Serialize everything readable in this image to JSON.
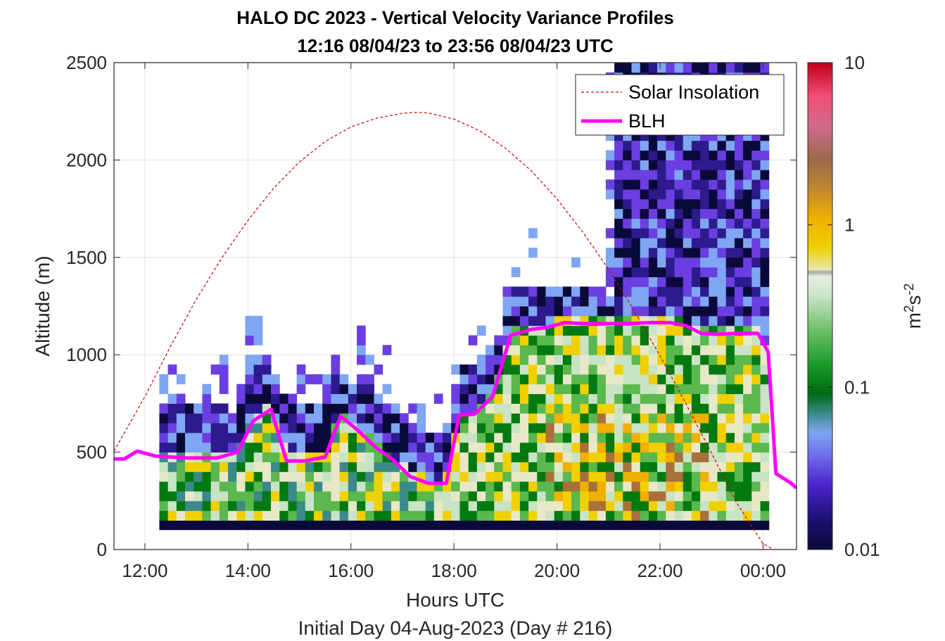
{
  "chart_data": {
    "type": "heatmap",
    "title": "HALO DC 2023 - Vertical Velocity Variance Profiles",
    "subtitle": "12:16 08/04/23 to 23:56 08/04/23  UTC",
    "xlabel": "Hours UTC",
    "ylabel": "Altitude (m)",
    "footer": "Initial Day 04-Aug-2023 (Day # 216)",
    "xlim": [
      11.4,
      24.65
    ],
    "ylim": [
      0,
      2500
    ],
    "grid": true,
    "xticks": [
      12,
      14,
      16,
      18,
      20,
      22,
      24
    ],
    "xtick_labels": [
      "12:00",
      "14:00",
      "16:00",
      "18:00",
      "20:00",
      "22:00",
      "00:00"
    ],
    "yticks": [
      0,
      500,
      1000,
      1500,
      2000,
      2500
    ],
    "ytick_labels": [
      "0",
      "500",
      "1000",
      "1500",
      "2000",
      "2500"
    ],
    "colorbar": {
      "scale": "log",
      "min": 0.01,
      "max": 10,
      "ticks": [
        "0.01",
        "0.1",
        "1",
        "10"
      ],
      "label_base": "m",
      "label_sup1": "2",
      "label_mid": "s",
      "label_sup2": "-2",
      "colors": [
        "#0a0a3a",
        "#2d1a8c",
        "#6a3ee0",
        "#7fa6f2",
        "#3a8a8a",
        "#007a10",
        "#5ab84e",
        "#c8e4c4",
        "#e8e8c8",
        "#f0d000",
        "#f0b000",
        "#a8703a",
        "#e0508a",
        "#c80018"
      ]
    },
    "series": [
      {
        "name": "Solar Insolation",
        "color": "#d00000",
        "style": "dashed",
        "x": [
          11.4,
          12.0,
          12.5,
          13.0,
          13.5,
          14.0,
          14.5,
          15.0,
          15.5,
          16.0,
          16.5,
          17.0,
          17.25,
          17.5,
          18.0,
          18.5,
          19.0,
          19.5,
          20.0,
          20.5,
          21.0,
          21.5,
          22.0,
          22.5,
          23.0,
          23.5,
          24.0,
          24.2,
          24.65
        ],
        "y": [
          505,
          785,
          1045,
          1285,
          1500,
          1690,
          1855,
          1990,
          2095,
          2170,
          2215,
          2240,
          2245,
          2242,
          2210,
          2150,
          2060,
          1945,
          1800,
          1630,
          1440,
          1225,
          995,
          750,
          495,
          235,
          30,
          0,
          0
        ]
      },
      {
        "name": "BLH",
        "color": "#ff00ff",
        "style": "solid",
        "x": [
          11.4,
          11.6,
          11.85,
          12.2,
          12.8,
          13.4,
          13.8,
          14.1,
          14.45,
          14.75,
          15.1,
          15.5,
          15.8,
          16.1,
          16.5,
          16.8,
          17.15,
          17.5,
          17.85,
          18.1,
          18.4,
          18.75,
          19.1,
          19.5,
          19.8,
          20.15,
          20.5,
          20.9,
          21.4,
          21.8,
          22.2,
          22.5,
          22.8,
          23.1,
          23.5,
          23.9,
          24.1,
          24.25,
          24.55,
          24.65
        ],
        "y": [
          465,
          465,
          505,
          480,
          470,
          470,
          500,
          660,
          720,
          455,
          455,
          475,
          685,
          620,
          520,
          465,
          375,
          340,
          340,
          690,
          695,
          785,
          1100,
          1130,
          1140,
          1165,
          1160,
          1160,
          1160,
          1165,
          1165,
          1150,
          1110,
          1105,
          1110,
          1110,
          1015,
          390,
          340,
          315
        ]
      }
    ],
    "legend": {
      "position": "top-right",
      "entries": [
        "Solar Insolation",
        "BLH"
      ]
    }
  }
}
